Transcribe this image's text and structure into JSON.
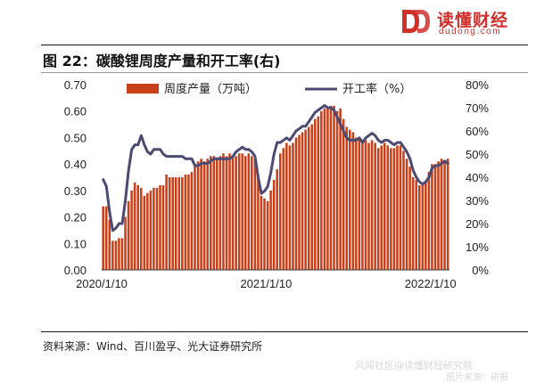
{
  "brand": {
    "name": "读懂财经",
    "url": "dudong.com",
    "logo_icon": "dd-logo-icon",
    "color": "#d12f2a"
  },
  "figure": {
    "title": "图 22：碳酸锂周度产量和开工率(右)",
    "source": "资料来源：Wind、百川盈孚、光大证券研究所"
  },
  "watermark": {
    "line1": "风闻社区@读懂财经研究院",
    "line2": "图片来源：研报"
  },
  "colors": {
    "bar": "#c8401a",
    "line": "#4a4a72"
  },
  "chart_data": {
    "type": "bar+line",
    "x_tick_labels": [
      "2020/1/10",
      "2021/1/10",
      "2022/1/10"
    ],
    "x_tick_at": [
      0,
      52,
      104
    ],
    "ylim_left": [
      0,
      0.7
    ],
    "left_ticks": [
      "0.70",
      "0.60",
      "0.50",
      "0.40",
      "0.30",
      "0.20",
      "0.10",
      "0.00"
    ],
    "ylim_right": [
      0,
      80
    ],
    "right_ticks": [
      "80%",
      "70%",
      "60%",
      "50%",
      "40%",
      "30%",
      "20%",
      "10%",
      "0%"
    ],
    "series": [
      {
        "name": "周度产量（万吨）",
        "type": "bar",
        "axis": "left",
        "values": [
          0.24,
          0.24,
          0.19,
          0.11,
          0.11,
          0.12,
          0.12,
          0.2,
          0.26,
          0.3,
          0.33,
          0.32,
          0.31,
          0.28,
          0.29,
          0.3,
          0.31,
          0.31,
          0.32,
          0.32,
          0.36,
          0.35,
          0.35,
          0.35,
          0.35,
          0.35,
          0.36,
          0.36,
          0.37,
          0.4,
          0.41,
          0.42,
          0.41,
          0.42,
          0.43,
          0.43,
          0.42,
          0.43,
          0.44,
          0.43,
          0.44,
          0.43,
          0.43,
          0.44,
          0.44,
          0.43,
          0.44,
          0.43,
          0.42,
          0.36,
          0.28,
          0.27,
          0.26,
          0.3,
          0.34,
          0.38,
          0.44,
          0.46,
          0.48,
          0.47,
          0.48,
          0.5,
          0.51,
          0.52,
          0.53,
          0.54,
          0.55,
          0.57,
          0.58,
          0.6,
          0.61,
          0.61,
          0.62,
          0.62,
          0.6,
          0.61,
          0.57,
          0.54,
          0.53,
          0.52,
          0.5,
          0.5,
          0.49,
          0.49,
          0.48,
          0.49,
          0.48,
          0.46,
          0.47,
          0.48,
          0.47,
          0.46,
          0.46,
          0.47,
          0.47,
          0.45,
          0.42,
          0.39,
          0.35,
          0.34,
          0.32,
          0.32,
          0.33,
          0.37,
          0.4,
          0.4,
          0.41,
          0.42,
          0.41,
          0.42
        ]
      },
      {
        "name": "开工率（%）",
        "type": "line",
        "axis": "right",
        "values": [
          39,
          36,
          25,
          17,
          18,
          20,
          20,
          30,
          43,
          52,
          54,
          54,
          58,
          54,
          51,
          50,
          52,
          52,
          52,
          50,
          49,
          49,
          49,
          49,
          49,
          49,
          48,
          48,
          48,
          45,
          45,
          46,
          46,
          46,
          47,
          48,
          48,
          48,
          48,
          48,
          48,
          49,
          51,
          52,
          53,
          52,
          52,
          51,
          49,
          40,
          33,
          34,
          36,
          42,
          50,
          55,
          55,
          56,
          57,
          56,
          58,
          60,
          61,
          62,
          62,
          64,
          66,
          68,
          69,
          70,
          71,
          70,
          70,
          69,
          66,
          63,
          60,
          57,
          56,
          56,
          56,
          57,
          55,
          57,
          58,
          59,
          58,
          56,
          55,
          56,
          56,
          55,
          54,
          55,
          55,
          53,
          51,
          48,
          43,
          40,
          38,
          37,
          38,
          40,
          44,
          45,
          45,
          46,
          47,
          46
        ]
      }
    ],
    "legend_position": "top"
  }
}
